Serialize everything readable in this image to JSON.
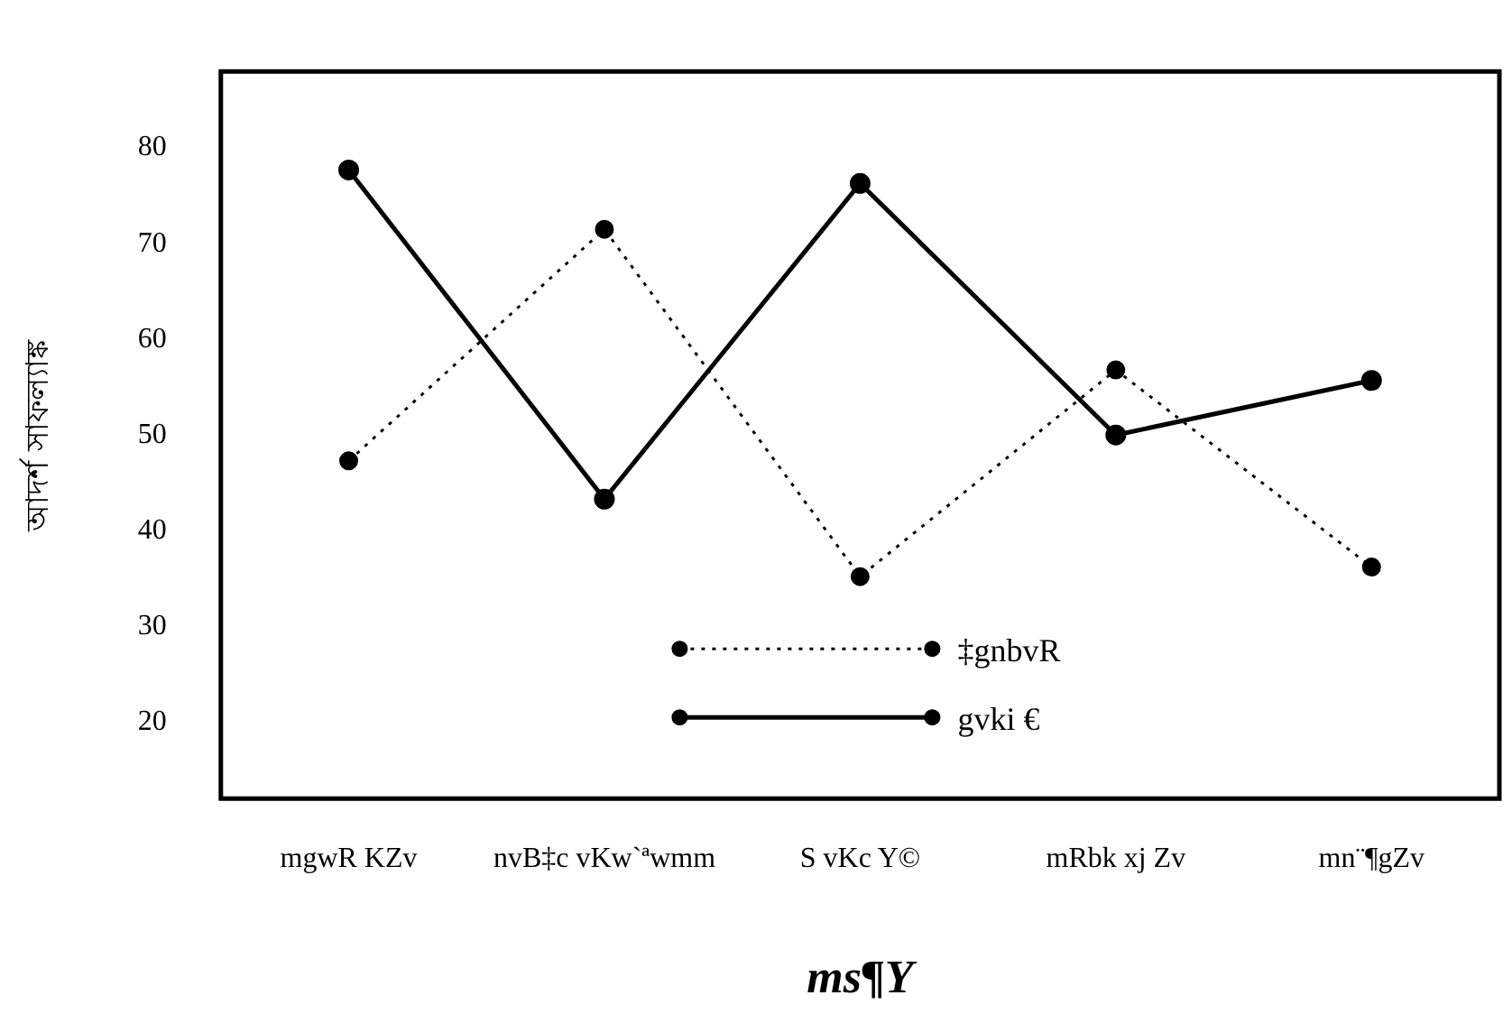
{
  "chart_data": {
    "type": "line",
    "xlabel": "ms¶Y",
    "ylabel": "আদর্শ সাফল্যাঙ্ক",
    "categories": [
      "mgwR KZv",
      "nvB‡c vKw`ªwmm",
      "S vKc Y©",
      "mRbk xj Zv",
      "mn¨¶gZv"
    ],
    "series": [
      {
        "name": "‡gnbvR",
        "color": "#000000",
        "line_style": "dotted",
        "values": [
          47.3,
          71.5,
          35.2,
          56.8,
          36.2
        ]
      },
      {
        "name": "gvki €",
        "color": "#000000",
        "line_style": "solid",
        "values": [
          77.7,
          43.3,
          76.3,
          50,
          55.7
        ]
      }
    ],
    "ylim": [
      12,
      88
    ],
    "yticks": [
      20,
      30,
      40,
      50,
      60,
      70,
      80
    ],
    "grid": false,
    "legend": "bottom",
    "marker": "circle"
  }
}
